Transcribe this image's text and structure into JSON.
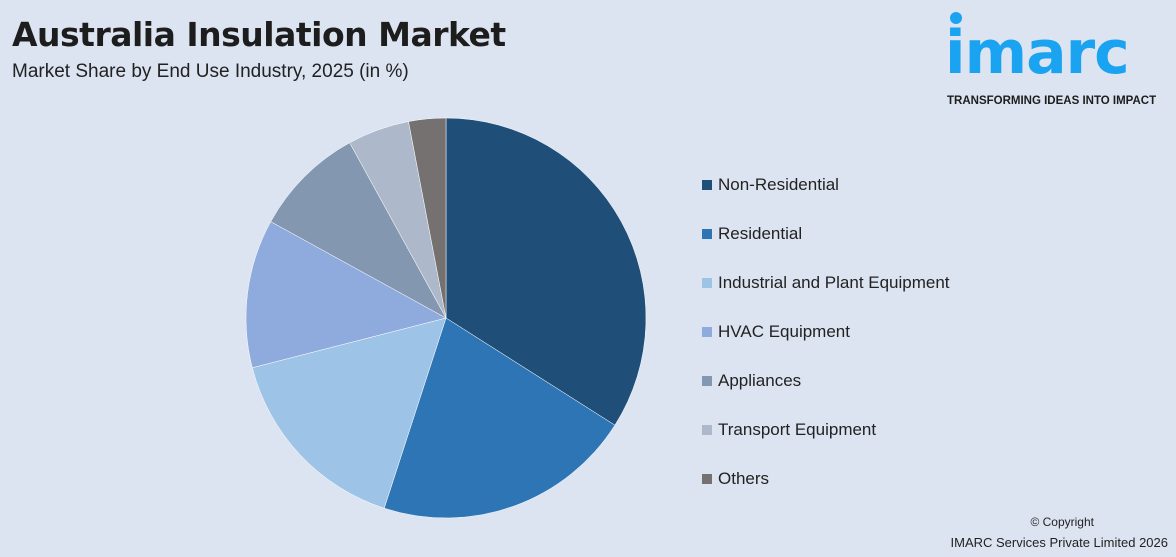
{
  "header": {
    "title": "Australia Insulation Market",
    "subtitle": "Market Share by End Use Industry, 2025 (in %)"
  },
  "logo": {
    "word": "imarc",
    "tagline": "TRANSFORMING IDEAS INTO IMPACT",
    "color": "#1aa3f0"
  },
  "chart_data": {
    "type": "pie",
    "title": "Australia Insulation Market",
    "subtitle": "Market Share by End Use Industry, 2025 (in %)",
    "legend_position": "right",
    "categories": [
      "Non-Residential",
      "Residential",
      "Industrial and Plant Equipment",
      "HVAC Equipment",
      "Appliances",
      "Transport Equipment",
      "Others"
    ],
    "values": [
      34,
      21,
      16,
      12,
      9,
      5,
      3
    ],
    "colors": [
      "#1f4e79",
      "#2e75b6",
      "#9dc3e6",
      "#8faadc",
      "#8497b0",
      "#adb9ca",
      "#767171"
    ]
  },
  "footer": {
    "copyright": "© Copyright",
    "company": "IMARC Services Private Limited 2026"
  }
}
